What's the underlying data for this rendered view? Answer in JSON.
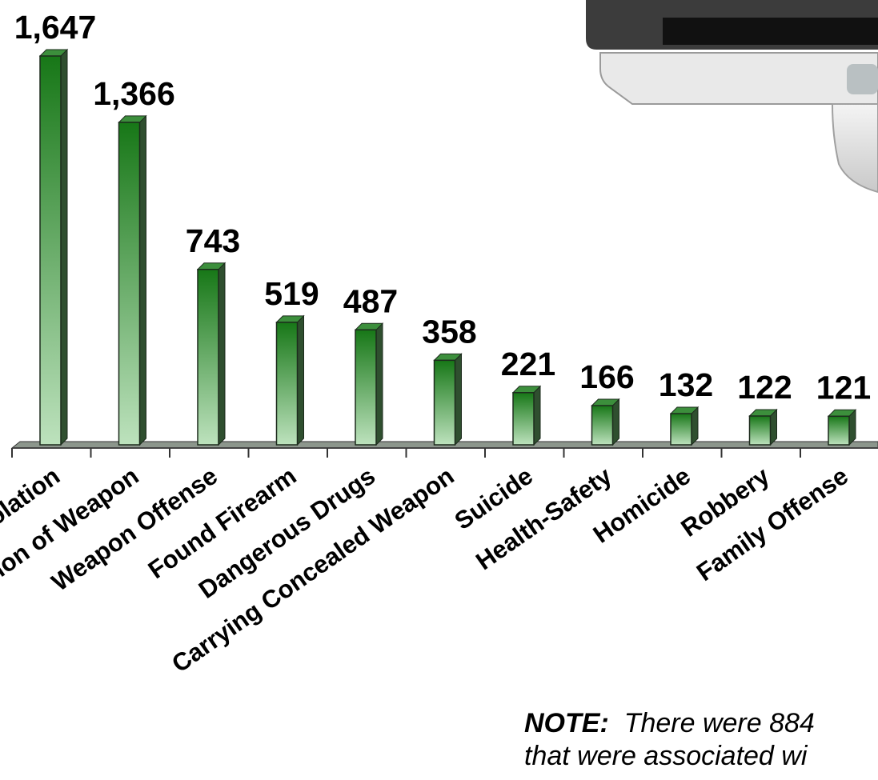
{
  "chart_data": {
    "type": "bar",
    "title": "",
    "xlabel": "",
    "ylabel": "",
    "ylim": [
      0,
      1647
    ],
    "grid": false,
    "legend": "none",
    "categories": [
      "Violation",
      "Possession of Weapon",
      "Weapon Offense",
      "Found Firearm",
      "Dangerous Drugs",
      "Carrying Concealed Weapon",
      "Suicide",
      "Health-Safety",
      "Homicide",
      "Robbery",
      "Family Offense"
    ],
    "values": [
      1647,
      1366,
      743,
      519,
      487,
      358,
      221,
      166,
      132,
      122,
      121
    ],
    "data_labels": [
      "1,647",
      "1,366",
      "743",
      "519",
      "487",
      "358",
      "221",
      "166",
      "132",
      "122",
      "121"
    ],
    "colors": {
      "bar_top": "#1a7a1a",
      "bar_bottom": "#b9dfb9",
      "bar_side": "#2f4f2f",
      "floor": "#7f8f7f"
    }
  },
  "note": {
    "bold": "NOTE:",
    "line1": "There were 884",
    "line2": "that were associated wi"
  },
  "image": {
    "pistol_icon": "pistol-icon"
  }
}
